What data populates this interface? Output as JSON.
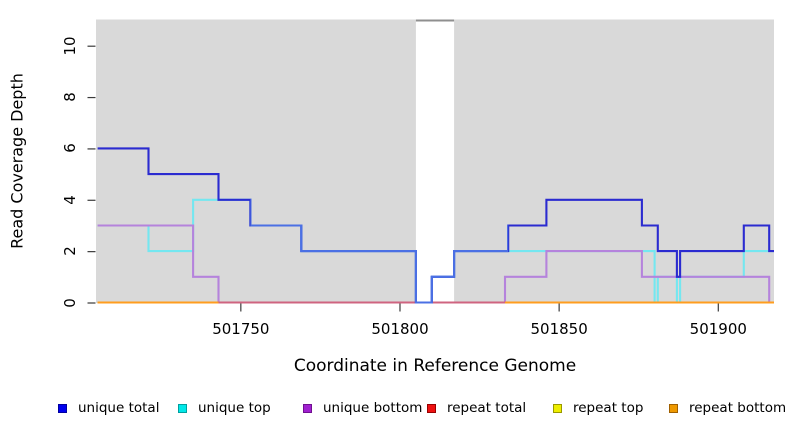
{
  "chart_data": {
    "type": "line",
    "subtype": "step-coverage-plot",
    "title": "",
    "xlabel": "Coordinate in Reference Genome",
    "ylabel": "Read Coverage Depth",
    "xlim": [
      501704.5,
      501917.5
    ],
    "ylim": [
      0,
      11
    ],
    "x_ticks": [
      501750,
      501800,
      501850,
      501900
    ],
    "y_ticks": [
      0,
      2,
      4,
      6,
      8,
      10
    ],
    "grid": "off",
    "legend_position": "bottom",
    "plot_background": "#d9d9d9",
    "masked_region": {
      "from": 501805,
      "to": 501817,
      "fill": "#ffffff",
      "top_edge_color": "#8f8f8f"
    },
    "series": [
      {
        "name": "unique total",
        "line_color": "#2b2bd0",
        "steps": [
          [
            501705,
            6
          ],
          [
            501721,
            5
          ],
          [
            501743,
            4
          ],
          [
            501753,
            3
          ],
          [
            501769,
            2
          ],
          [
            501805,
            0
          ],
          [
            501810,
            1
          ],
          [
            501817,
            2
          ],
          [
            501834,
            3
          ],
          [
            501846,
            4
          ],
          [
            501876,
            3
          ],
          [
            501881,
            2
          ],
          [
            501887,
            1
          ],
          [
            501888,
            2
          ],
          [
            501908,
            3
          ],
          [
            501916,
            2
          ]
        ]
      },
      {
        "name": "unique top",
        "line_color": "#74e7f0",
        "steps": [
          [
            501705,
            3
          ],
          [
            501721,
            2
          ],
          [
            501735,
            4
          ],
          [
            501753,
            3
          ],
          [
            501769,
            2
          ],
          [
            501805,
            0
          ],
          [
            501810,
            1
          ],
          [
            501817,
            2
          ],
          [
            501880,
            0
          ],
          [
            501881,
            1
          ],
          [
            501887,
            0
          ],
          [
            501888,
            1
          ],
          [
            501908,
            2
          ]
        ]
      },
      {
        "name": "unique bottom",
        "line_color": "#b583dc",
        "steps": [
          [
            501705,
            3
          ],
          [
            501735,
            1
          ],
          [
            501743,
            0
          ],
          [
            501833,
            1
          ],
          [
            501846,
            2
          ],
          [
            501876,
            1
          ],
          [
            501916,
            0
          ]
        ]
      },
      {
        "name": "repeat total",
        "line_color": "#d92b2b",
        "steps": [
          [
            501705,
            0
          ]
        ]
      },
      {
        "name": "repeat top",
        "line_color": "#e8e832",
        "steps": [
          [
            501705,
            0
          ]
        ]
      },
      {
        "name": "repeat bottom",
        "line_color": "#ff9d1e",
        "steps": [
          [
            501705,
            0
          ]
        ]
      }
    ],
    "blend_overlays": [
      {
        "series": "repeat bottom",
        "from": 501743,
        "to": 501833,
        "color": "#cf6480",
        "note": "baseline appears pink where unique-bottom coincides with repeat lines at depth 0"
      },
      {
        "series": "unique total",
        "from": 501753,
        "to": 501834,
        "color": "#4b70e4",
        "note": "total line appears lighter blue where it coincides with unique top"
      }
    ]
  },
  "legend": {
    "items": [
      {
        "label": "unique total",
        "swatch_color": "#0000ee",
        "swatch_border": "#0000a0"
      },
      {
        "label": "unique top",
        "swatch_color": "#00e8e8",
        "swatch_border": "#00a0a0"
      },
      {
        "label": "unique bottom",
        "swatch_color": "#a020d0",
        "swatch_border": "#701090"
      },
      {
        "label": "repeat total",
        "swatch_color": "#ee1111",
        "swatch_border": "#990000"
      },
      {
        "label": "repeat top",
        "swatch_color": "#eeee00",
        "swatch_border": "#999900"
      },
      {
        "label": "repeat bottom",
        "swatch_color": "#ee9900",
        "swatch_border": "#a06000"
      }
    ]
  }
}
